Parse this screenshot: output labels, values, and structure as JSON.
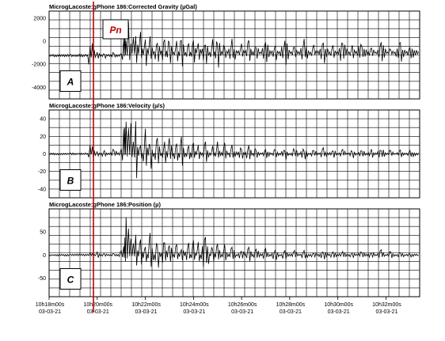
{
  "chart_data": [
    {
      "type": "line",
      "title": "MicrogLacoste:gPhone 186:Corrected Gravity (µGal)",
      "panel_label": "A",
      "annotation": "Pn",
      "ylim": [
        -5000,
        2600
      ],
      "yticks": [
        2000,
        0,
        -2000,
        -4000
      ],
      "ytick_labels": [
        "2000",
        "0",
        "-2000",
        "-4000"
      ],
      "grid": true,
      "series": [
        {
          "x": [
            0.0,
            0.9,
            1.6,
            1.7,
            1.8,
            2.0,
            2.3,
            2.7,
            3.0,
            3.1,
            3.15,
            3.2,
            3.3,
            3.4,
            3.5,
            3.6,
            3.8,
            4.0,
            4.2,
            4.5,
            4.8,
            5.0,
            5.3,
            5.5,
            5.8,
            6.0,
            6.2,
            6.5,
            6.8,
            7.0,
            7.3,
            7.6,
            8.0,
            8.3,
            8.6,
            9.0,
            9.4,
            9.8,
            10.2,
            10.6,
            11.0,
            11.4,
            11.8,
            12.2,
            12.6,
            13.0,
            13.4,
            13.8,
            14.2,
            14.6,
            15.0,
            15.4
          ],
          "y": [
            -1250,
            -1250,
            -1300,
            500,
            -2400,
            -800,
            -1600,
            -900,
            -1400,
            800,
            -3800,
            1500,
            -4500,
            1200,
            -3200,
            1500,
            -3000,
            900,
            -2500,
            600,
            -2600,
            900,
            -2400,
            700,
            -2300,
            700,
            -2200,
            600,
            -2300,
            700,
            -2000,
            400,
            -2100,
            400,
            -1900,
            200,
            -1900,
            300,
            -1800,
            200,
            -1700,
            200,
            -1700,
            200,
            -1700,
            200,
            -1700,
            100,
            -1600,
            100,
            -1800,
            -1000
          ]
        }
      ]
    },
    {
      "type": "line",
      "title": "MicrogLacoste:gPhone 186:Velocity (µ/s)",
      "panel_label": "B",
      "ylim": [
        -50,
        50
      ],
      "yticks": [
        40,
        20,
        0,
        -20,
        -40
      ],
      "ytick_labels": [
        "40",
        "20",
        "0",
        "-20",
        "-40"
      ],
      "grid": true,
      "series": [
        {
          "x": [
            0.0,
            0.9,
            1.6,
            1.7,
            1.8,
            2.0,
            2.3,
            2.7,
            3.0,
            3.1,
            3.15,
            3.2,
            3.3,
            3.4,
            3.5,
            3.6,
            3.8,
            4.0,
            4.2,
            4.5,
            4.8,
            5.0,
            5.3,
            5.5,
            5.8,
            6.0,
            6.2,
            6.5,
            6.8,
            7.0,
            7.3,
            7.6,
            8.0,
            8.3,
            8.6,
            9.0,
            9.4,
            9.8,
            10.2,
            10.6,
            11.0,
            11.4,
            11.8,
            12.2,
            12.6,
            13.0,
            13.4,
            13.8,
            14.2,
            14.6,
            15.0,
            15.4
          ],
          "y": [
            0,
            0,
            0,
            10,
            -12,
            5,
            -6,
            8,
            -8,
            35,
            -40,
            38,
            -30,
            36,
            -25,
            40,
            -22,
            30,
            -25,
            24,
            -20,
            22,
            -18,
            20,
            -15,
            18,
            -15,
            16,
            -12,
            14,
            -14,
            12,
            -10,
            12,
            -10,
            10,
            -8,
            9,
            -8,
            8,
            -7,
            8,
            -7,
            6,
            -6,
            6,
            -6,
            8,
            -6,
            6,
            -5,
            0
          ]
        }
      ]
    },
    {
      "type": "line",
      "title": "MicrogLacoste:gPhone 186:Position (µ)",
      "panel_label": "C",
      "ylim": [
        -90,
        100
      ],
      "yticks": [
        50,
        0,
        -50
      ],
      "ytick_labels": [
        "50",
        "0",
        "-50"
      ],
      "grid": true,
      "xticks": [
        0,
        2,
        4,
        6,
        8,
        10,
        12,
        14
      ],
      "xtick_labels": [
        [
          "10h18m00s",
          "03-03-21"
        ],
        [
          "10h20m00s",
          "03-03-21"
        ],
        [
          "10h22m00s",
          "03-03-21"
        ],
        [
          "10h24m00s",
          "03-03-21"
        ],
        [
          "10h26m00s",
          "03-03-21"
        ],
        [
          "10h28m00s",
          "03-03-21"
        ],
        [
          "10h30m00s",
          "03-03-21"
        ],
        [
          "10h32m00s",
          "03-03-21"
        ]
      ],
      "series": [
        {
          "x": [
            0.0,
            0.9,
            1.6,
            1.7,
            1.8,
            2.0,
            2.3,
            2.7,
            3.0,
            3.1,
            3.15,
            3.2,
            3.3,
            3.4,
            3.5,
            3.6,
            3.8,
            4.0,
            4.2,
            4.5,
            4.8,
            5.0,
            5.3,
            5.5,
            5.8,
            6.0,
            6.2,
            6.5,
            6.8,
            7.0,
            7.3,
            7.6,
            8.0,
            8.3,
            8.6,
            9.0,
            9.4,
            9.8,
            10.2,
            10.6,
            11.0,
            11.4,
            11.8,
            12.2,
            12.6,
            13.0,
            13.4,
            13.8,
            14.2,
            14.6,
            15.0,
            15.4
          ],
          "y": [
            0,
            0,
            0,
            5,
            -10,
            8,
            -5,
            6,
            -10,
            20,
            -40,
            90,
            -60,
            50,
            -40,
            55,
            -45,
            45,
            -50,
            40,
            -40,
            35,
            -30,
            30,
            -35,
            40,
            -30,
            60,
            -30,
            30,
            -25,
            20,
            -20,
            22,
            -18,
            15,
            -15,
            15,
            -12,
            12,
            -10,
            15,
            -10,
            10,
            -8,
            10,
            -10,
            12,
            -10,
            8,
            -5,
            0
          ]
        }
      ]
    }
  ]
}
